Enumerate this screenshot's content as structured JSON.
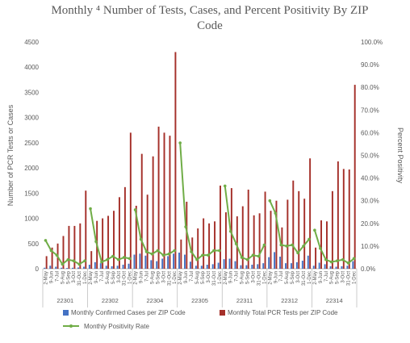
{
  "chart_data": {
    "type": "bar",
    "title": "Monthly ⁴ Number of Tests, Cases, and Percent Positivity By ZIP Code",
    "ylabel_left": "Number of PCR Tests or Cases",
    "ylabel_right": "Percent Positivity",
    "ylim_left": [
      0,
      4500
    ],
    "ylim_right": [
      0,
      1
    ],
    "left_ticks": [
      "0",
      "500",
      "1000",
      "1500",
      "2000",
      "2500",
      "3000",
      "3500",
      "4000",
      "4500"
    ],
    "right_ticks": [
      "0.0%",
      "10.0%",
      "20.0%",
      "30.0%",
      "40.0%",
      "50.0%",
      "60.0%",
      "70.0%",
      "80.0%",
      "90.0%",
      "100.0%"
    ],
    "months": [
      "2-May",
      "9-Jun",
      "7-Jul",
      "5-Aug",
      "5-Sep",
      "3-Oct",
      "31-Oct",
      "1-Dec"
    ],
    "zip_codes": [
      "22301",
      "22302",
      "22304",
      "22305",
      "22311",
      "22312",
      "22314"
    ],
    "legend_position": "bottom",
    "grid": false,
    "colors": {
      "cases": "#4472C4",
      "tests": "#A5302A",
      "positivity": "#70AD47"
    },
    "series": [
      {
        "name": "Monthly Confirmed Cases per ZIP Code",
        "type": "bar",
        "values": [
          20,
          60,
          40,
          20,
          15,
          20,
          25,
          40,
          80,
          130,
          110,
          60,
          50,
          60,
          80,
          100,
          280,
          300,
          260,
          170,
          150,
          200,
          250,
          300,
          320,
          280,
          140,
          60,
          60,
          80,
          90,
          120,
          190,
          200,
          150,
          70,
          70,
          80,
          90,
          110,
          230,
          330,
          240,
          110,
          110,
          130,
          160,
          260,
          60,
          120,
          90,
          50,
          40,
          50,
          60,
          150
        ]
      },
      {
        "name": "Monthly Total PCR Tests per ZIP Code",
        "type": "bar",
        "values": [
          250,
          420,
          500,
          650,
          850,
          850,
          900,
          1550,
          350,
          950,
          1000,
          1050,
          1150,
          1420,
          1620,
          2700,
          1250,
          2280,
          1470,
          2230,
          2820,
          2700,
          2640,
          4300,
          580,
          1330,
          620,
          800,
          1000,
          900,
          940,
          1650,
          1120,
          1600,
          1040,
          1240,
          1570,
          1060,
          1100,
          1530,
          1150,
          1350,
          820,
          1370,
          1750,
          1540,
          1390,
          2190,
          420,
          960,
          940,
          1540,
          2130,
          1980,
          1970,
          3650
        ]
      },
      {
        "name": "Monthly Positivity Rate",
        "type": "line",
        "values": [
          0.125,
          0.08,
          0.06,
          0.02,
          0.04,
          0.035,
          0.02,
          0.035,
          0.265,
          0.12,
          0.03,
          0.04,
          0.055,
          0.04,
          0.05,
          0.045,
          0.26,
          0.13,
          0.075,
          0.065,
          0.08,
          0.06,
          0.065,
          0.08,
          0.555,
          0.185,
          0.075,
          0.04,
          0.06,
          0.06,
          0.08,
          0.08,
          0.365,
          0.165,
          0.11,
          0.05,
          0.04,
          0.06,
          0.055,
          0.105,
          0.3,
          0.245,
          0.105,
          0.1,
          0.105,
          0.07,
          0.1,
          0.13,
          0.17,
          0.09,
          0.04,
          0.03,
          0.035,
          0.04,
          0.025,
          0.045
        ]
      }
    ]
  }
}
